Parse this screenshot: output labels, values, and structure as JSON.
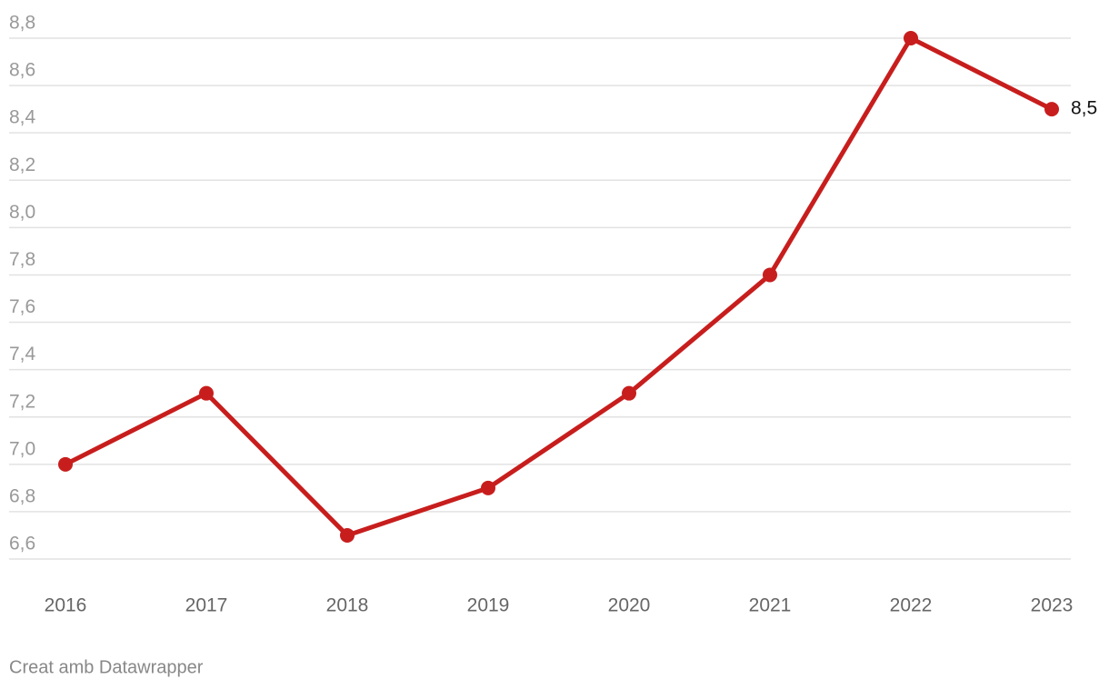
{
  "chart_data": {
    "type": "line",
    "categories": [
      "2016",
      "2017",
      "2018",
      "2019",
      "2020",
      "2021",
      "2022",
      "2023"
    ],
    "series": [
      {
        "color": "#c71e1d",
        "values": [
          7.0,
          7.3,
          6.7,
          6.9,
          7.3,
          7.8,
          8.8,
          8.5
        ],
        "value_labels": [
          null,
          null,
          null,
          null,
          null,
          null,
          null,
          "8,5"
        ]
      }
    ],
    "ylim": [
      6.6,
      8.8
    ],
    "yticks": [
      {
        "value": 6.6,
        "label": "6,6"
      },
      {
        "value": 6.8,
        "label": "6,8"
      },
      {
        "value": 7.0,
        "label": "7,0"
      },
      {
        "value": 7.2,
        "label": "7,2"
      },
      {
        "value": 7.4,
        "label": "7,4"
      },
      {
        "value": 7.6,
        "label": "7,6"
      },
      {
        "value": 7.8,
        "label": "7,8"
      },
      {
        "value": 8.0,
        "label": "8,0"
      },
      {
        "value": 8.2,
        "label": "8,2"
      },
      {
        "value": 8.4,
        "label": "8,4"
      },
      {
        "value": 8.6,
        "label": "8,6"
      },
      {
        "value": 8.8,
        "label": "8,8"
      }
    ],
    "grid": true,
    "credit": "Creat amb Datawrapper"
  }
}
